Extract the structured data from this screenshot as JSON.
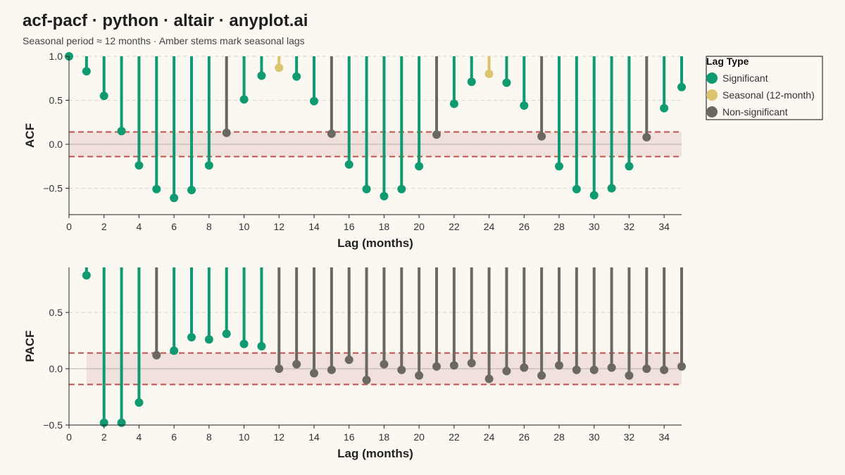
{
  "title": "acf-pacf · python · altair · anyplot.ai",
  "subtitle": "Seasonal period ≈ 12 months · Amber stems mark seasonal lags",
  "colors": {
    "significant": "#0f9a72",
    "seasonal": "#dcc36e",
    "nonsignificant": "#6b6862",
    "confidence_line": "#c0504d",
    "confidence_band": "#f0e1dc",
    "background": "#faf8f1"
  },
  "legend": {
    "title": "Lag Type",
    "placement": "top-right",
    "items": [
      {
        "label": "Significant",
        "color": "#0f9a72"
      },
      {
        "label": "Seasonal (12-month)",
        "color": "#dcc36e"
      },
      {
        "label": "Non-significant",
        "color": "#6b6862"
      }
    ]
  },
  "chart_data": [
    {
      "type": "stem",
      "name": "acf",
      "xlabel": "Lag (months)",
      "ylabel": "ACF",
      "xlim": [
        0,
        35
      ],
      "ylim": [
        -0.8,
        1.0
      ],
      "xticks": [
        0,
        2,
        4,
        6,
        8,
        10,
        12,
        14,
        16,
        18,
        20,
        22,
        24,
        26,
        28,
        30,
        32,
        34
      ],
      "yticks": [
        -0.5,
        0.0,
        0.5,
        1.0
      ],
      "ytick_labels": [
        "−0.5",
        "0.0",
        "0.5",
        "1.0"
      ],
      "confidence_bound": 0.14,
      "grid": true,
      "lags": [
        0,
        1,
        2,
        3,
        4,
        5,
        6,
        7,
        8,
        9,
        10,
        11,
        12,
        13,
        14,
        15,
        16,
        17,
        18,
        19,
        20,
        21,
        22,
        23,
        24,
        25,
        26,
        27,
        28,
        29,
        30,
        31,
        32,
        33,
        34,
        35
      ],
      "values": [
        1.0,
        0.83,
        0.55,
        0.15,
        -0.24,
        -0.51,
        -0.61,
        -0.52,
        -0.24,
        0.13,
        0.51,
        0.78,
        0.87,
        0.77,
        0.49,
        0.12,
        -0.23,
        -0.51,
        -0.59,
        -0.51,
        -0.25,
        0.11,
        0.46,
        0.71,
        0.8,
        0.7,
        0.44,
        0.09,
        -0.25,
        -0.51,
        -0.58,
        -0.5,
        -0.25,
        0.08,
        0.41,
        0.65
      ],
      "categories": [
        "significant",
        "significant",
        "significant",
        "significant",
        "significant",
        "significant",
        "significant",
        "significant",
        "significant",
        "nonsignificant",
        "significant",
        "significant",
        "seasonal",
        "significant",
        "significant",
        "nonsignificant",
        "significant",
        "significant",
        "significant",
        "significant",
        "significant",
        "nonsignificant",
        "significant",
        "significant",
        "seasonal",
        "significant",
        "significant",
        "nonsignificant",
        "significant",
        "significant",
        "significant",
        "significant",
        "significant",
        "nonsignificant",
        "significant",
        "significant"
      ]
    },
    {
      "type": "stem",
      "name": "pacf",
      "xlabel": "Lag (months)",
      "ylabel": "PACF",
      "xlim": [
        0,
        35
      ],
      "ylim": [
        -0.5,
        0.9
      ],
      "xticks": [
        0,
        2,
        4,
        6,
        8,
        10,
        12,
        14,
        16,
        18,
        20,
        22,
        24,
        26,
        28,
        30,
        32,
        34
      ],
      "yticks": [
        -0.5,
        0.0,
        0.5
      ],
      "ytick_labels": [
        "−0.5",
        "0.0",
        "0.5"
      ],
      "confidence_bound": 0.14,
      "grid": true,
      "lags": [
        1,
        2,
        3,
        4,
        5,
        6,
        7,
        8,
        9,
        10,
        11,
        12,
        13,
        14,
        15,
        16,
        17,
        18,
        19,
        20,
        21,
        22,
        23,
        24,
        25,
        26,
        27,
        28,
        29,
        30,
        31,
        32,
        33,
        34,
        35
      ],
      "values": [
        0.83,
        -0.48,
        -0.48,
        -0.3,
        0.12,
        0.16,
        0.28,
        0.26,
        0.31,
        0.22,
        0.2,
        0.0,
        0.04,
        -0.04,
        -0.01,
        0.08,
        -0.1,
        0.04,
        -0.01,
        -0.06,
        0.02,
        0.03,
        0.05,
        -0.09,
        -0.02,
        0.01,
        -0.06,
        0.03,
        -0.01,
        -0.01,
        0.01,
        -0.06,
        0.0,
        -0.01,
        0.02
      ],
      "categories": [
        "significant",
        "significant",
        "significant",
        "significant",
        "nonsignificant",
        "significant",
        "significant",
        "significant",
        "significant",
        "significant",
        "significant",
        "nonsignificant",
        "nonsignificant",
        "nonsignificant",
        "nonsignificant",
        "nonsignificant",
        "nonsignificant",
        "nonsignificant",
        "nonsignificant",
        "nonsignificant",
        "nonsignificant",
        "nonsignificant",
        "nonsignificant",
        "nonsignificant",
        "nonsignificant",
        "nonsignificant",
        "nonsignificant",
        "nonsignificant",
        "nonsignificant",
        "nonsignificant",
        "nonsignificant",
        "nonsignificant",
        "nonsignificant",
        "nonsignificant",
        "nonsignificant"
      ]
    }
  ]
}
